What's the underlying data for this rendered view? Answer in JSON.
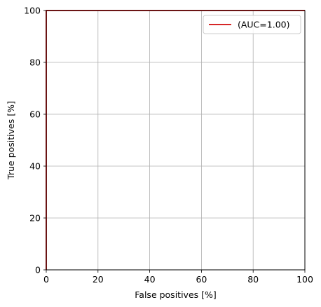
{
  "chart_data": {
    "type": "line",
    "xlabel": "False positives [%]",
    "ylabel": "True positives [%]",
    "xlim": [
      0,
      100
    ],
    "ylim": [
      0,
      100
    ],
    "xticks": [
      0,
      20,
      40,
      60,
      80,
      100
    ],
    "yticks": [
      0,
      20,
      40,
      60,
      80,
      100
    ],
    "grid": true,
    "legend_position": "top-right",
    "series": [
      {
        "name": "(AUC=1.00)",
        "color": "#d62728",
        "x": [
          0,
          0,
          100
        ],
        "y": [
          0,
          100,
          100
        ]
      }
    ]
  }
}
